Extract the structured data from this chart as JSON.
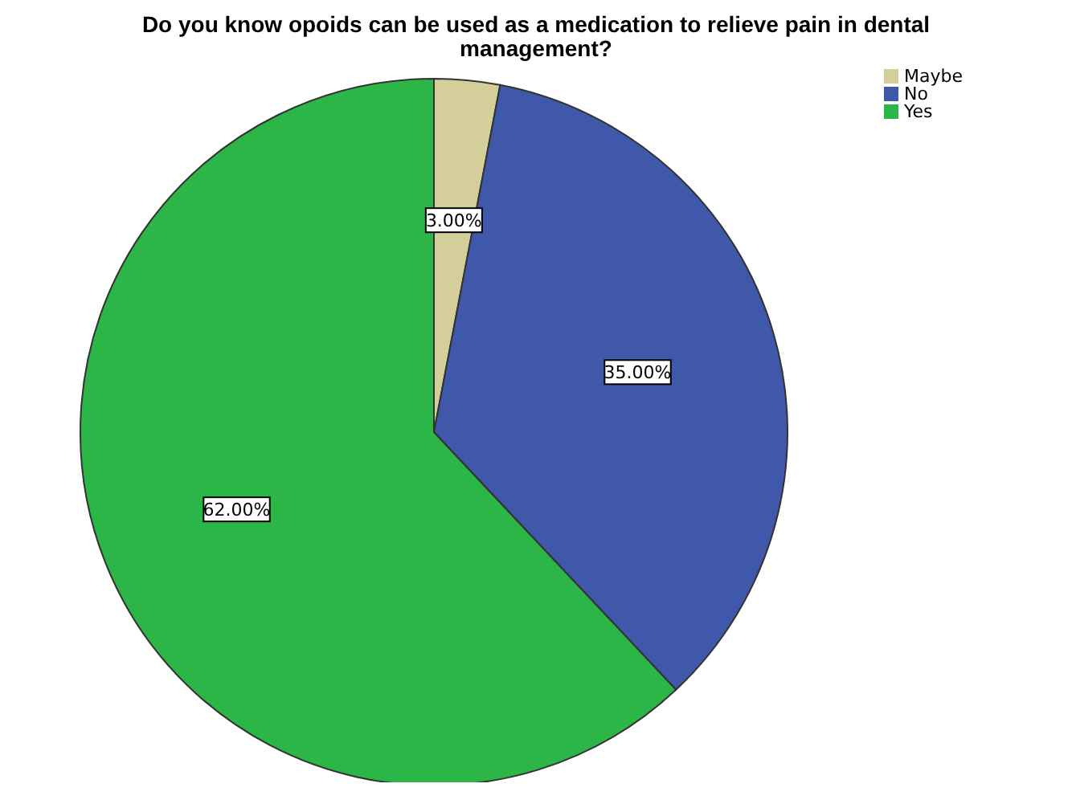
{
  "chart_data": {
    "type": "pie",
    "title": "Do you know opoids can be used as a medication to relieve pain in dental management?",
    "categories": [
      "Maybe",
      "No",
      "Yes"
    ],
    "values": [
      3,
      35,
      62
    ],
    "value_labels": [
      "3.00%",
      "35.00%",
      "62.00%"
    ],
    "colors": [
      "#d3ce9a",
      "#3f58aa",
      "#2db648"
    ],
    "legend": "top right"
  }
}
